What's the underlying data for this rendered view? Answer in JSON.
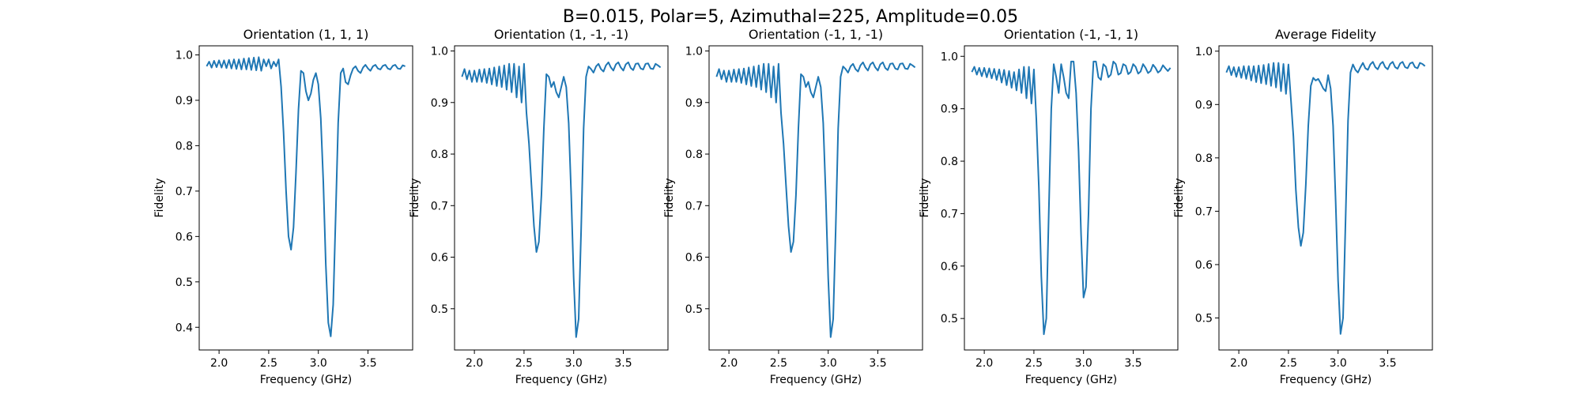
{
  "figure": {
    "suptitle": "B=0.015, Polar=5, Azimuthal=225, Amplitude=0.05"
  },
  "colors": {
    "line": "#1f77b4",
    "axes": "#000000"
  },
  "chart_data": [
    {
      "type": "line",
      "title": "Orientation (1, 1, 1)",
      "xlabel": "Frequency (GHz)",
      "ylabel": "Fidelity",
      "xlim": [
        1.8,
        3.95
      ],
      "ylim": [
        0.35,
        1.02
      ],
      "xticks": [
        2.0,
        2.5,
        3.0,
        3.5
      ],
      "yticks": [
        0.4,
        0.5,
        0.6,
        0.7,
        0.8,
        0.9,
        1.0
      ],
      "series": [
        {
          "x": [
            1.875,
            1.9,
            1.925,
            1.95,
            1.975,
            2.0,
            2.025,
            2.05,
            2.075,
            2.1,
            2.125,
            2.15,
            2.175,
            2.2,
            2.225,
            2.25,
            2.275,
            2.3,
            2.325,
            2.35,
            2.375,
            2.4,
            2.425,
            2.45,
            2.475,
            2.5,
            2.525,
            2.55,
            2.575,
            2.6,
            2.625,
            2.65,
            2.675,
            2.7,
            2.725,
            2.75,
            2.775,
            2.8,
            2.825,
            2.85,
            2.875,
            2.9,
            2.925,
            2.95,
            2.975,
            3.0,
            3.025,
            3.05,
            3.075,
            3.1,
            3.125,
            3.15,
            3.175,
            3.2,
            3.225,
            3.25,
            3.275,
            3.3,
            3.325,
            3.35,
            3.375,
            3.4,
            3.425,
            3.45,
            3.475,
            3.5,
            3.525,
            3.55,
            3.575,
            3.6,
            3.625,
            3.65,
            3.675,
            3.7,
            3.725,
            3.75,
            3.775,
            3.8,
            3.825,
            3.85,
            3.875
          ],
          "y": [
            0.975,
            0.985,
            0.972,
            0.987,
            0.973,
            0.988,
            0.972,
            0.988,
            0.971,
            0.989,
            0.97,
            0.99,
            0.969,
            0.99,
            0.968,
            0.992,
            0.968,
            0.993,
            0.967,
            0.994,
            0.966,
            0.995,
            0.965,
            0.99,
            0.975,
            0.99,
            0.97,
            0.985,
            0.975,
            0.99,
            0.93,
            0.83,
            0.7,
            0.6,
            0.571,
            0.62,
            0.74,
            0.88,
            0.965,
            0.96,
            0.92,
            0.9,
            0.915,
            0.945,
            0.96,
            0.935,
            0.86,
            0.72,
            0.54,
            0.41,
            0.38,
            0.45,
            0.65,
            0.85,
            0.96,
            0.97,
            0.94,
            0.935,
            0.955,
            0.97,
            0.975,
            0.965,
            0.96,
            0.972,
            0.978,
            0.97,
            0.965,
            0.975,
            0.978,
            0.97,
            0.968,
            0.976,
            0.978,
            0.97,
            0.968,
            0.976,
            0.978,
            0.97,
            0.969,
            0.977,
            0.975
          ]
        }
      ]
    },
    {
      "type": "line",
      "title": "Orientation (1, -1, -1)",
      "xlabel": "Frequency (GHz)",
      "ylabel": "Fidelity",
      "xlim": [
        1.8,
        3.95
      ],
      "ylim": [
        0.42,
        1.01
      ],
      "xticks": [
        2.0,
        2.5,
        3.0,
        3.5
      ],
      "yticks": [
        0.5,
        0.6,
        0.7,
        0.8,
        0.9,
        1.0
      ],
      "series": [
        {
          "x": [
            1.875,
            1.9,
            1.925,
            1.95,
            1.975,
            2.0,
            2.025,
            2.05,
            2.075,
            2.1,
            2.125,
            2.15,
            2.175,
            2.2,
            2.225,
            2.25,
            2.275,
            2.3,
            2.325,
            2.35,
            2.375,
            2.4,
            2.425,
            2.45,
            2.475,
            2.5,
            2.525,
            2.55,
            2.575,
            2.6,
            2.625,
            2.65,
            2.675,
            2.7,
            2.725,
            2.75,
            2.775,
            2.8,
            2.825,
            2.85,
            2.875,
            2.9,
            2.925,
            2.95,
            2.975,
            3.0,
            3.025,
            3.05,
            3.075,
            3.1,
            3.125,
            3.15,
            3.175,
            3.2,
            3.225,
            3.25,
            3.275,
            3.3,
            3.325,
            3.35,
            3.375,
            3.4,
            3.425,
            3.45,
            3.475,
            3.5,
            3.525,
            3.55,
            3.575,
            3.6,
            3.625,
            3.65,
            3.675,
            3.7,
            3.725,
            3.75,
            3.775,
            3.8,
            3.825,
            3.85,
            3.875
          ],
          "y": [
            0.95,
            0.965,
            0.945,
            0.962,
            0.94,
            0.962,
            0.94,
            0.964,
            0.94,
            0.965,
            0.938,
            0.966,
            0.935,
            0.968,
            0.932,
            0.97,
            0.93,
            0.972,
            0.925,
            0.975,
            0.92,
            0.975,
            0.91,
            0.97,
            0.9,
            0.975,
            0.88,
            0.82,
            0.74,
            0.66,
            0.61,
            0.63,
            0.72,
            0.85,
            0.955,
            0.95,
            0.93,
            0.94,
            0.92,
            0.91,
            0.93,
            0.95,
            0.93,
            0.86,
            0.72,
            0.56,
            0.445,
            0.48,
            0.65,
            0.85,
            0.95,
            0.97,
            0.965,
            0.958,
            0.97,
            0.975,
            0.965,
            0.96,
            0.972,
            0.978,
            0.968,
            0.962,
            0.974,
            0.978,
            0.968,
            0.962,
            0.974,
            0.978,
            0.967,
            0.963,
            0.975,
            0.976,
            0.966,
            0.964,
            0.975,
            0.976,
            0.966,
            0.965,
            0.975,
            0.972,
            0.968
          ]
        }
      ]
    },
    {
      "type": "line",
      "title": "Orientation (-1, 1, -1)",
      "xlabel": "Frequency (GHz)",
      "ylabel": "Fidelity",
      "xlim": [
        1.8,
        3.95
      ],
      "ylim": [
        0.42,
        1.01
      ],
      "xticks": [
        2.0,
        2.5,
        3.0,
        3.5
      ],
      "yticks": [
        0.5,
        0.6,
        0.7,
        0.8,
        0.9,
        1.0
      ],
      "series": [
        {
          "x": [
            1.875,
            1.9,
            1.925,
            1.95,
            1.975,
            2.0,
            2.025,
            2.05,
            2.075,
            2.1,
            2.125,
            2.15,
            2.175,
            2.2,
            2.225,
            2.25,
            2.275,
            2.3,
            2.325,
            2.35,
            2.375,
            2.4,
            2.425,
            2.45,
            2.475,
            2.5,
            2.525,
            2.55,
            2.575,
            2.6,
            2.625,
            2.65,
            2.675,
            2.7,
            2.725,
            2.75,
            2.775,
            2.8,
            2.825,
            2.85,
            2.875,
            2.9,
            2.925,
            2.95,
            2.975,
            3.0,
            3.025,
            3.05,
            3.075,
            3.1,
            3.125,
            3.15,
            3.175,
            3.2,
            3.225,
            3.25,
            3.275,
            3.3,
            3.325,
            3.35,
            3.375,
            3.4,
            3.425,
            3.45,
            3.475,
            3.5,
            3.525,
            3.55,
            3.575,
            3.6,
            3.625,
            3.65,
            3.675,
            3.7,
            3.725,
            3.75,
            3.775,
            3.8,
            3.825,
            3.85,
            3.875
          ],
          "y": [
            0.95,
            0.965,
            0.945,
            0.962,
            0.94,
            0.962,
            0.94,
            0.964,
            0.94,
            0.965,
            0.938,
            0.966,
            0.935,
            0.968,
            0.932,
            0.97,
            0.93,
            0.972,
            0.925,
            0.975,
            0.92,
            0.975,
            0.91,
            0.97,
            0.9,
            0.975,
            0.88,
            0.82,
            0.74,
            0.66,
            0.61,
            0.63,
            0.72,
            0.85,
            0.955,
            0.95,
            0.93,
            0.94,
            0.92,
            0.91,
            0.93,
            0.95,
            0.93,
            0.86,
            0.72,
            0.56,
            0.445,
            0.48,
            0.65,
            0.85,
            0.95,
            0.97,
            0.965,
            0.958,
            0.97,
            0.975,
            0.965,
            0.96,
            0.972,
            0.978,
            0.968,
            0.962,
            0.974,
            0.978,
            0.968,
            0.962,
            0.974,
            0.978,
            0.967,
            0.963,
            0.975,
            0.976,
            0.966,
            0.964,
            0.975,
            0.976,
            0.966,
            0.965,
            0.975,
            0.972,
            0.968
          ]
        }
      ]
    },
    {
      "type": "line",
      "title": "Orientation (-1, -1, 1)",
      "xlabel": "Frequency (GHz)",
      "ylabel": "Fidelity",
      "xlim": [
        1.8,
        3.95
      ],
      "ylim": [
        0.44,
        1.02
      ],
      "xticks": [
        2.0,
        2.5,
        3.0,
        3.5
      ],
      "yticks": [
        0.5,
        0.6,
        0.7,
        0.8,
        0.9,
        1.0
      ],
      "series": [
        {
          "x": [
            1.875,
            1.9,
            1.925,
            1.95,
            1.975,
            2.0,
            2.025,
            2.05,
            2.075,
            2.1,
            2.125,
            2.15,
            2.175,
            2.2,
            2.225,
            2.25,
            2.275,
            2.3,
            2.325,
            2.35,
            2.375,
            2.4,
            2.425,
            2.45,
            2.475,
            2.5,
            2.525,
            2.55,
            2.575,
            2.6,
            2.625,
            2.65,
            2.675,
            2.7,
            2.725,
            2.75,
            2.775,
            2.8,
            2.825,
            2.85,
            2.875,
            2.9,
            2.925,
            2.95,
            2.975,
            3.0,
            3.025,
            3.05,
            3.075,
            3.1,
            3.125,
            3.15,
            3.175,
            3.2,
            3.225,
            3.25,
            3.275,
            3.3,
            3.325,
            3.35,
            3.375,
            3.4,
            3.425,
            3.45,
            3.475,
            3.5,
            3.525,
            3.55,
            3.575,
            3.6,
            3.625,
            3.65,
            3.675,
            3.7,
            3.725,
            3.75,
            3.775,
            3.8,
            3.825,
            3.85,
            3.875
          ],
          "y": [
            0.97,
            0.98,
            0.965,
            0.978,
            0.962,
            0.978,
            0.96,
            0.977,
            0.958,
            0.976,
            0.955,
            0.975,
            0.95,
            0.974,
            0.945,
            0.972,
            0.94,
            0.97,
            0.935,
            0.975,
            0.93,
            0.98,
            0.92,
            0.98,
            0.91,
            0.975,
            0.88,
            0.75,
            0.58,
            0.47,
            0.5,
            0.7,
            0.9,
            0.985,
            0.96,
            0.93,
            0.985,
            0.96,
            0.93,
            0.92,
            0.99,
            0.99,
            0.93,
            0.82,
            0.66,
            0.54,
            0.56,
            0.7,
            0.9,
            0.99,
            0.99,
            0.96,
            0.955,
            0.985,
            0.98,
            0.96,
            0.965,
            0.99,
            0.985,
            0.965,
            0.968,
            0.985,
            0.982,
            0.966,
            0.97,
            0.985,
            0.98,
            0.967,
            0.971,
            0.985,
            0.978,
            0.968,
            0.972,
            0.984,
            0.978,
            0.969,
            0.973,
            0.983,
            0.977,
            0.972,
            0.978
          ]
        }
      ]
    },
    {
      "type": "line",
      "title": "Average Fidelity",
      "xlabel": "Frequency (GHz)",
      "ylabel": "Fidelity",
      "xlim": [
        1.8,
        3.95
      ],
      "ylim": [
        0.44,
        1.01
      ],
      "xticks": [
        2.0,
        2.5,
        3.0,
        3.5
      ],
      "yticks": [
        0.5,
        0.6,
        0.7,
        0.8,
        0.9,
        1.0
      ],
      "series": [
        {
          "x": [
            1.875,
            1.9,
            1.925,
            1.95,
            1.975,
            2.0,
            2.025,
            2.05,
            2.075,
            2.1,
            2.125,
            2.15,
            2.175,
            2.2,
            2.225,
            2.25,
            2.275,
            2.3,
            2.325,
            2.35,
            2.375,
            2.4,
            2.425,
            2.45,
            2.475,
            2.5,
            2.525,
            2.55,
            2.575,
            2.6,
            2.625,
            2.65,
            2.675,
            2.7,
            2.725,
            2.75,
            2.775,
            2.8,
            2.825,
            2.85,
            2.875,
            2.9,
            2.925,
            2.95,
            2.975,
            3.0,
            3.025,
            3.05,
            3.075,
            3.1,
            3.125,
            3.15,
            3.175,
            3.2,
            3.225,
            3.25,
            3.275,
            3.3,
            3.325,
            3.35,
            3.375,
            3.4,
            3.425,
            3.45,
            3.475,
            3.5,
            3.525,
            3.55,
            3.575,
            3.6,
            3.625,
            3.65,
            3.675,
            3.7,
            3.725,
            3.75,
            3.775,
            3.8,
            3.825,
            3.85,
            3.875
          ],
          "y": [
            0.96,
            0.972,
            0.955,
            0.97,
            0.952,
            0.97,
            0.95,
            0.972,
            0.948,
            0.972,
            0.945,
            0.972,
            0.942,
            0.973,
            0.94,
            0.974,
            0.938,
            0.976,
            0.935,
            0.978,
            0.932,
            0.978,
            0.925,
            0.976,
            0.92,
            0.975,
            0.91,
            0.84,
            0.74,
            0.67,
            0.635,
            0.66,
            0.75,
            0.86,
            0.935,
            0.95,
            0.945,
            0.948,
            0.94,
            0.93,
            0.925,
            0.955,
            0.93,
            0.86,
            0.72,
            0.57,
            0.47,
            0.5,
            0.68,
            0.87,
            0.96,
            0.975,
            0.965,
            0.96,
            0.97,
            0.978,
            0.968,
            0.965,
            0.975,
            0.98,
            0.97,
            0.966,
            0.976,
            0.98,
            0.97,
            0.966,
            0.976,
            0.98,
            0.97,
            0.967,
            0.977,
            0.98,
            0.97,
            0.968,
            0.977,
            0.979,
            0.97,
            0.968,
            0.978,
            0.976,
            0.972
          ]
        }
      ]
    }
  ]
}
